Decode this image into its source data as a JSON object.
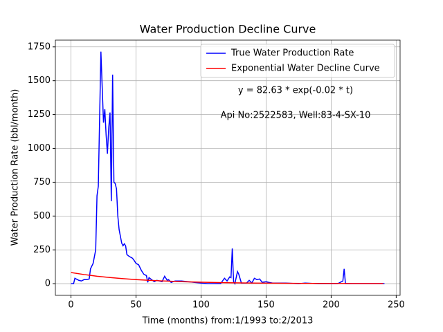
{
  "chart_data": {
    "type": "line",
    "title": "Water Production Decline Curve",
    "xlabel": "Time (months) from:1/1993 to:2/2013",
    "ylabel": "Water Production Rate (bbl/month)",
    "annotations": [
      "y = 82.63 * exp(-0.02 * t)",
      "Api No:2522583, Well:83-4-SX-10"
    ],
    "xlim": [
      -12,
      253
    ],
    "ylim": [
      -86,
      1800
    ],
    "xticks": [
      0,
      50,
      100,
      150,
      200,
      250
    ],
    "yticks": [
      0,
      250,
      500,
      750,
      1000,
      1250,
      1500,
      1750
    ],
    "grid": true,
    "legend": "upper right",
    "series": [
      {
        "name": "True Water Production Rate",
        "color": "#0000ff",
        "x": [
          0,
          2,
          3,
          6,
          8,
          10,
          12,
          14,
          15,
          17,
          19,
          20,
          21,
          23,
          24,
          25,
          26,
          27,
          28,
          29,
          30,
          31,
          32,
          33,
          34,
          35,
          36,
          37,
          39,
          40,
          41,
          42,
          43,
          45,
          47,
          48,
          50,
          52,
          54,
          56,
          58,
          59,
          60,
          62,
          64,
          66,
          68,
          70,
          72,
          74,
          75,
          77,
          80,
          85,
          90,
          95,
          100,
          105,
          110,
          115,
          118,
          120,
          122,
          123,
          124,
          125,
          126,
          128,
          129,
          131,
          135,
          137,
          139,
          141,
          143,
          145,
          147,
          150,
          152,
          155,
          165,
          175,
          180,
          190,
          205,
          209,
          210,
          211,
          241
        ],
        "values": [
          0,
          0,
          40,
          25,
          20,
          30,
          30,
          35,
          110,
          150,
          250,
          650,
          720,
          1715,
          1450,
          1190,
          1290,
          1100,
          960,
          1150,
          1265,
          610,
          1545,
          750,
          740,
          700,
          500,
          400,
          300,
          280,
          295,
          280,
          215,
          200,
          190,
          180,
          150,
          140,
          100,
          70,
          60,
          10,
          45,
          30,
          15,
          25,
          20,
          15,
          55,
          25,
          30,
          10,
          20,
          20,
          15,
          10,
          5,
          0,
          0,
          0,
          40,
          20,
          50,
          45,
          260,
          15,
          0,
          90,
          70,
          5,
          5,
          25,
          5,
          40,
          30,
          35,
          10,
          15,
          10,
          5,
          5,
          0,
          5,
          0,
          0,
          20,
          110,
          0,
          0
        ]
      },
      {
        "name": "Exponential Water Decline Curve",
        "color": "#ff0000",
        "x": [
          0,
          10,
          20,
          30,
          40,
          50,
          60,
          70,
          80,
          90,
          100,
          110,
          120,
          130,
          140,
          150,
          160,
          170,
          180,
          190,
          200,
          210,
          220,
          230,
          240
        ],
        "values": [
          82.63,
          67.65,
          55.39,
          45.35,
          37.13,
          30.4,
          24.89,
          20.38,
          16.68,
          13.66,
          11.18,
          9.16,
          7.5,
          6.14,
          5.02,
          4.11,
          3.37,
          2.76,
          2.26,
          1.85,
          1.51,
          1.24,
          1.01,
          0.83,
          0.68
        ]
      }
    ]
  }
}
